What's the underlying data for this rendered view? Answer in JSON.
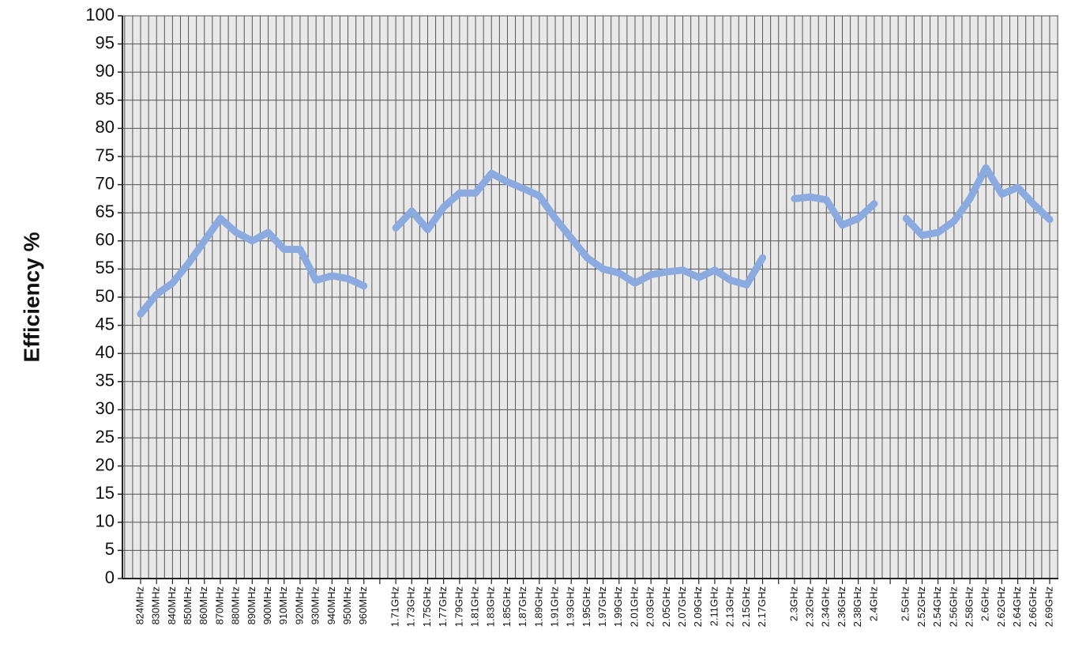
{
  "chart_data": {
    "type": "line",
    "y_label": "Efficiency %",
    "categories": [
      "824MHz",
      "830MHz",
      "840MHz",
      "850MHz",
      "860MHz",
      "870MHz",
      "880MHz",
      "890MHz",
      "900MHz",
      "910MHz",
      "920MHz",
      "930MHz",
      "940MHz",
      "950MHz",
      "960MHz",
      null,
      "1.71GHz",
      "1.73GHz",
      "1.75GHz",
      "1.77GHz",
      "1.79GHz",
      "1.81GHz",
      "1.83GHz",
      "1.85GHz",
      "1.87GHz",
      "1.89GHz",
      "1.91GHz",
      "1.93GHz",
      "1.95GHz",
      "1.97GHz",
      "1.99GHz",
      "2.01GHz",
      "2.03GHz",
      "2.05GHz",
      "2.07GHz",
      "2.09GHz",
      "2.11GHz",
      "2.13GHz",
      "2.15GHz",
      "2.17GHz",
      null,
      "2.3GHz",
      "2.32GHz",
      "2.34GHz",
      "2.36GHz",
      "2.38GHz",
      "2.4GHz",
      null,
      "2.5GHz",
      "2.52GHz",
      "2.54GHz",
      "2.56GHz",
      "2.58GHz",
      "2.6GHz",
      "2.62GHz",
      "2.64GHz",
      "2.66GHz",
      "2.69GHz"
    ],
    "values": [
      47,
      50.5,
      52.5,
      56,
      60,
      64,
      61.5,
      60,
      61.5,
      58.5,
      58.5,
      53,
      53.8,
      53.3,
      52,
      null,
      62.3,
      65.3,
      62,
      66,
      68.5,
      68.5,
      72,
      70.5,
      69.3,
      68,
      64,
      60.5,
      57,
      55,
      54.3,
      52.5,
      54,
      54.5,
      54.8,
      53.5,
      54.8,
      53,
      52.2,
      57,
      null,
      67.5,
      67.8,
      67.3,
      62.8,
      64,
      66.6,
      null,
      64,
      61,
      61.5,
      63.5,
      67.5,
      73,
      68.3,
      69.5,
      66.5,
      63.8
    ],
    "color": "#8aaae0",
    "ylim": [
      0,
      100
    ],
    "yticks": [
      0,
      5,
      10,
      15,
      20,
      25,
      30,
      35,
      40,
      45,
      50,
      55,
      60,
      65,
      70,
      75,
      80,
      85,
      90,
      95,
      100
    ],
    "grid": true
  }
}
